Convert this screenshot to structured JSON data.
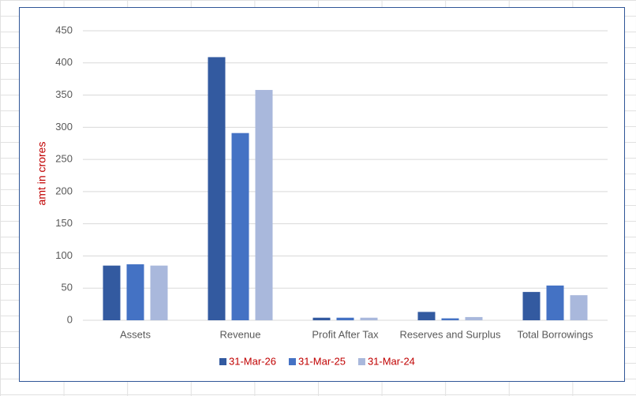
{
  "chart_data": {
    "type": "bar",
    "y_label": "amt in crores",
    "categories": [
      "Assets",
      "Revenue",
      "Profit After Tax",
      "Reserves and Surplus",
      "Total Borrowings"
    ],
    "series": [
      {
        "name": "31-Mar-26",
        "color": "#335aa0",
        "values": [
          85,
          409,
          4,
          13,
          44
        ]
      },
      {
        "name": "31-Mar-25",
        "color": "#4472c4",
        "values": [
          87,
          291,
          4,
          3,
          54
        ]
      },
      {
        "name": "31-Mar-24",
        "color": "#a9b8dc",
        "values": [
          85,
          358,
          4,
          5,
          39
        ]
      }
    ],
    "ylim": [
      0,
      450
    ],
    "yticks": [
      0,
      50,
      100,
      150,
      200,
      250,
      300,
      350,
      400,
      450
    ],
    "grid": true
  }
}
